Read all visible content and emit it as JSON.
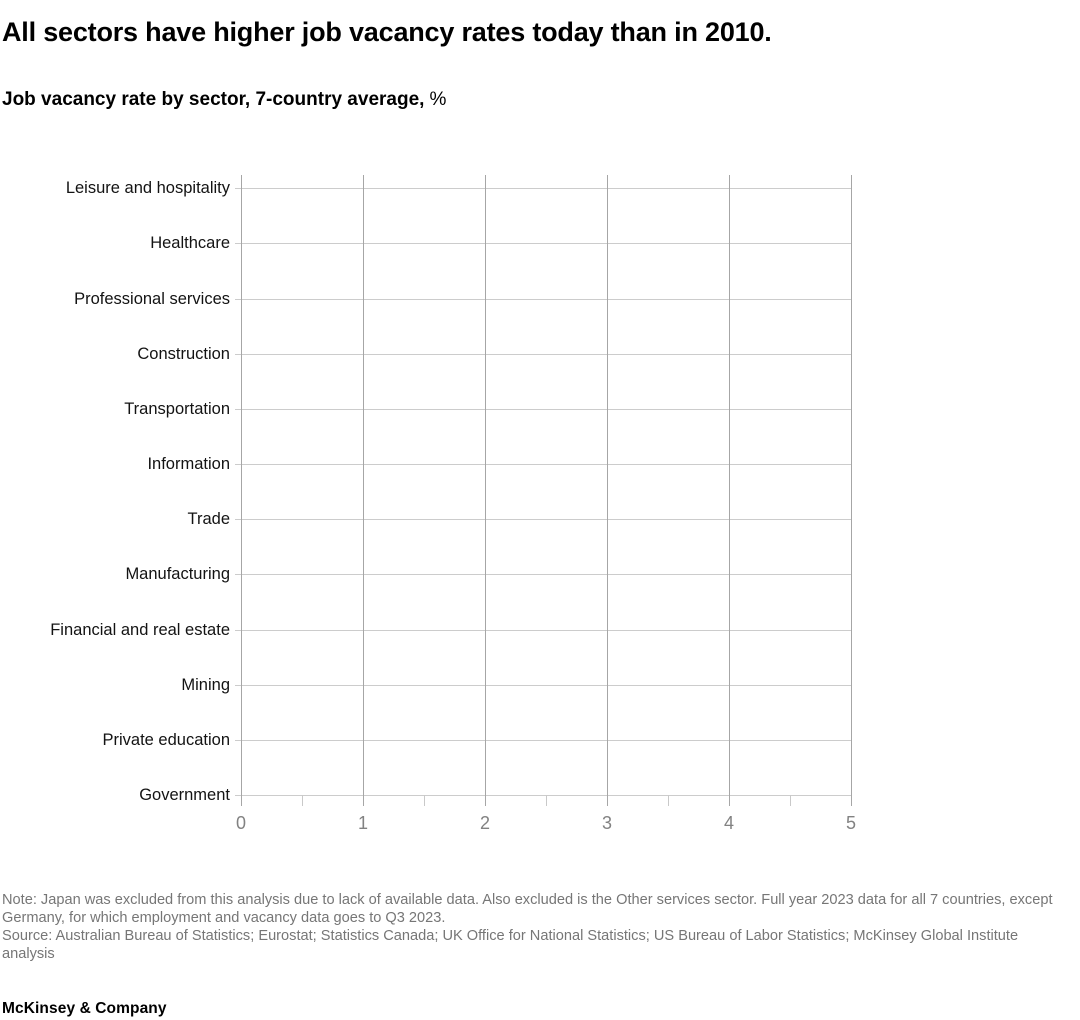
{
  "header": {
    "title": "All sectors have higher job vacancy rates today than in 2010.",
    "subtitle": "Job vacancy rate by sector, 7-country average,",
    "subtitle_unit": "%"
  },
  "chart_data": {
    "type": "bar",
    "orientation": "horizontal",
    "title": "Job vacancy rate by sector, 7-country average, %",
    "categories": [
      "Leisure and hospitality",
      "Healthcare",
      "Professional services",
      "Construction",
      "Transportation",
      "Information",
      "Trade",
      "Manufacturing",
      "Financial and real estate",
      "Mining",
      "Private education",
      "Government"
    ],
    "values": [],
    "xlabel": "",
    "ylabel": "",
    "xlim": [
      0,
      5
    ],
    "x_ticks": [
      "0",
      "1",
      "2",
      "3",
      "4",
      "5"
    ],
    "x_minor_tick_interval": 0.5,
    "grid": true,
    "legend": "none",
    "bars_rendered": false
  },
  "footnotes": {
    "note": "Note: Japan was excluded from this analysis due to lack of available data. Also excluded is the Other services sector. Full year 2023 data for all 7 countries, except Germany, for which employment and vacancy data goes to Q3 2023.",
    "source": "Source: Australian Bureau of Statistics; Eurostat; Statistics Canada; UK Office for National Statistics; US Bureau of Labor Statistics; McKinsey Global Institute analysis"
  },
  "footer": {
    "brand": "McKinsey & Company"
  },
  "colors": {
    "background": "#ffffff",
    "grid_vertical": "#a6a6a6",
    "grid_horizontal": "#cccccc",
    "tick_label": "#828282",
    "footnote_text": "#767676",
    "title_text": "#000000"
  }
}
